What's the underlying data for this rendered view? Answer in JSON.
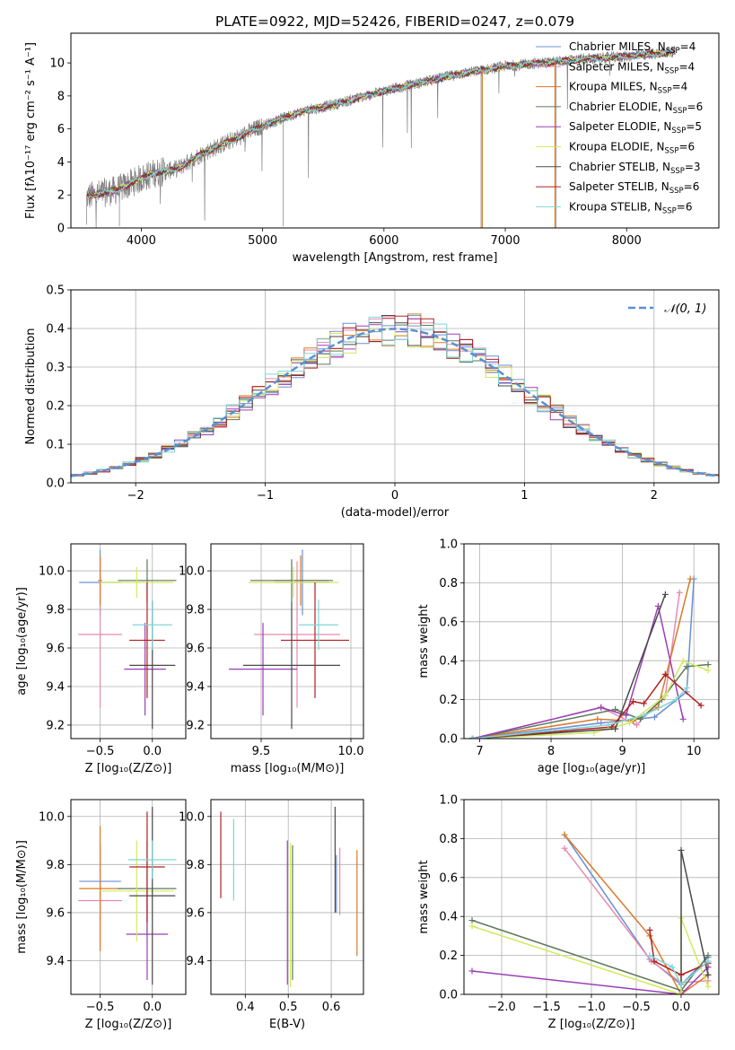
{
  "chart_data": [
    {
      "id": "spectrum",
      "type": "line",
      "title": "PLATE=0922, MJD=52426, FIBERID=0247, z=0.079",
      "xlabel": "wavelength [Angstrom, rest frame]",
      "ylabel": "Flux [fλ10⁻¹⁷ erg cm⁻² s⁻¹ A⁻¹]",
      "xlim": [
        3420,
        8760
      ],
      "ylim": [
        0,
        11.8
      ],
      "xticks": [
        4000,
        5000,
        6000,
        7000,
        8000
      ],
      "yticks": [
        0,
        2,
        4,
        6,
        8,
        10
      ],
      "legend_position": "upper-right",
      "legend": [
        {
          "label": "Chabrier MILES, N",
          "sub": "SSP",
          "tail": "=4",
          "color": "#6a8fd4"
        },
        {
          "label": "Salpeter MILES, N",
          "sub": "SSP",
          "tail": "=4",
          "color": "#e78ab2"
        },
        {
          "label": "Kroupa MILES, N",
          "sub": "SSP",
          "tail": "=4",
          "color": "#d97a2a"
        },
        {
          "label": "Chabrier ELODIE, N",
          "sub": "SSP",
          "tail": "=6",
          "color": "#5b7a5b"
        },
        {
          "label": "Salpeter ELODIE, N",
          "sub": "SSP",
          "tail": "=5",
          "color": "#9b3fb5"
        },
        {
          "label": "Kroupa ELODIE, N",
          "sub": "SSP",
          "tail": "=6",
          "color": "#d5e85c"
        },
        {
          "label": "Chabrier STELIB, N",
          "sub": "SSP",
          "tail": "=3",
          "color": "#4a4a4a"
        },
        {
          "label": "Salpeter STELIB, N",
          "sub": "SSP",
          "tail": "=6",
          "color": "#b22222"
        },
        {
          "label": "Kroupa STELIB, N",
          "sub": "SSP",
          "tail": "=6",
          "color": "#7fd6d6"
        }
      ],
      "continuum": {
        "wavelength": [
          3550,
          3800,
          4000,
          4100,
          4300,
          4500,
          4800,
          5000,
          5300,
          5600,
          6000,
          6300,
          6600,
          7000,
          7300,
          7600,
          8000,
          8300,
          8400
        ],
        "flux": [
          1.9,
          2.3,
          3.0,
          3.3,
          3.6,
          4.5,
          5.5,
          6.2,
          7.0,
          7.5,
          8.3,
          8.8,
          9.3,
          9.8,
          10.0,
          10.2,
          10.4,
          10.6,
          10.7
        ]
      }
    },
    {
      "id": "residuals",
      "type": "histogram",
      "xlabel": "(data-model)/error",
      "ylabel": "Normed distribution",
      "xlim": [
        -2.5,
        2.5
      ],
      "ylim": [
        0,
        0.5
      ],
      "xticks": [
        -2,
        -1,
        0,
        1,
        2
      ],
      "yticks": [
        0,
        0.1,
        0.2,
        0.3,
        0.4,
        0.5
      ],
      "legend_label": "𝒩(0, 1)",
      "legend_color": "#5b8fd4",
      "bins": 50
    },
    {
      "id": "age-vs-Z",
      "type": "errorbar",
      "xlabel": "Z [log₁₀(Z/Z⊙)]",
      "ylabel": "age  [log₁₀(age/yr)]",
      "xlim": [
        -0.78,
        0.32
      ],
      "ylim": [
        9.13,
        10.14
      ],
      "xticks": [
        -0.5,
        0.0
      ],
      "yticks": [
        9.2,
        9.4,
        9.6,
        9.8,
        10.0
      ],
      "points": [
        {
          "color": "#6a8fd4",
          "x": -0.5,
          "y": 9.94,
          "xerr": 0.2,
          "yerr": 0.17
        },
        {
          "color": "#e78ab2",
          "x": -0.5,
          "y": 9.67,
          "xerr": 0.21,
          "yerr": 0.38
        },
        {
          "color": "#d97a2a",
          "x": -0.5,
          "y": 9.95,
          "xerr": 0.02,
          "yerr": 0.13
        },
        {
          "color": "#5b7a5b",
          "x": -0.05,
          "y": 9.95,
          "xerr": 0.28,
          "yerr": 0.11
        },
        {
          "color": "#9b3fb5",
          "x": -0.07,
          "y": 9.49,
          "xerr": 0.2,
          "yerr": 0.24
        },
        {
          "color": "#d5e85c",
          "x": -0.15,
          "y": 9.94,
          "xerr": 0.35,
          "yerr": 0.08
        },
        {
          "color": "#4a4a4a",
          "x": 0.0,
          "y": 9.51,
          "xerr": 0.22,
          "yerr": 0.33
        },
        {
          "color": "#b22222",
          "x": -0.05,
          "y": 9.64,
          "xerr": 0.17,
          "yerr": 0.3
        },
        {
          "color": "#7fd6d6",
          "x": 0.0,
          "y": 9.72,
          "xerr": 0.19,
          "yerr": 0.13
        }
      ]
    },
    {
      "id": "age-vs-mass",
      "type": "errorbar",
      "xlabel": "mass [log₁₀(M/M⊙)]",
      "xlim": [
        9.22,
        10.07
      ],
      "ylim": [
        9.13,
        10.14
      ],
      "xticks": [
        9.5,
        10.0
      ],
      "yticks": [
        9.2,
        9.4,
        9.6,
        9.8,
        10.0
      ],
      "points": [
        {
          "color": "#6a8fd4",
          "x": 9.73,
          "y": 9.94,
          "xerr": 0.15,
          "yerr": 0.17
        },
        {
          "color": "#e78ab2",
          "x": 9.7,
          "y": 9.67,
          "xerr": 0.24,
          "yerr": 0.38
        },
        {
          "color": "#d97a2a",
          "x": 9.72,
          "y": 9.95,
          "xerr": 0.15,
          "yerr": 0.13
        },
        {
          "color": "#5b7a5b",
          "x": 9.67,
          "y": 9.95,
          "xerr": 0.23,
          "yerr": 0.11
        },
        {
          "color": "#9b3fb5",
          "x": 9.51,
          "y": 9.49,
          "xerr": 0.19,
          "yerr": 0.24
        },
        {
          "color": "#d5e85c",
          "x": 9.68,
          "y": 9.94,
          "xerr": 0.25,
          "yerr": 0.08
        },
        {
          "color": "#4a4a4a",
          "x": 9.67,
          "y": 9.51,
          "xerr": 0.27,
          "yerr": 0.33
        },
        {
          "color": "#b22222",
          "x": 9.8,
          "y": 9.64,
          "xerr": 0.19,
          "yerr": 0.3
        },
        {
          "color": "#7fd6d6",
          "x": 9.82,
          "y": 9.72,
          "xerr": 0.11,
          "yerr": 0.13
        }
      ]
    },
    {
      "id": "weight-vs-age",
      "type": "line",
      "xlabel": "age  [log₁₀(age/yr)]",
      "ylabel": "mass weight",
      "xlim": [
        6.78,
        10.35
      ],
      "ylim": [
        0,
        1.0
      ],
      "xticks": [
        7,
        8,
        9,
        10
      ],
      "yticks": [
        0.0,
        0.2,
        0.4,
        0.6,
        0.8,
        1.0
      ],
      "series": [
        {
          "color": "#6a8fd4",
          "x": [
            6.9,
            8.7,
            9.45,
            9.9,
            10.0
          ],
          "y": [
            0.0,
            0.08,
            0.11,
            0.24,
            0.82
          ]
        },
        {
          "color": "#e78ab2",
          "x": [
            6.9,
            8.7,
            9.2,
            9.6,
            9.8
          ],
          "y": [
            0.0,
            0.16,
            0.07,
            0.22,
            0.75
          ]
        },
        {
          "color": "#d97a2a",
          "x": [
            6.9,
            8.65,
            9.15,
            9.5,
            9.95
          ],
          "y": [
            0.0,
            0.1,
            0.09,
            0.16,
            0.82
          ]
        },
        {
          "color": "#5b7a5b",
          "x": [
            6.9,
            8.9,
            9.25,
            9.55,
            9.9,
            10.2
          ],
          "y": [
            0.0,
            0.15,
            0.1,
            0.2,
            0.37,
            0.38
          ]
        },
        {
          "color": "#9b3fb5",
          "x": [
            6.9,
            8.7,
            9.05,
            9.5,
            9.85
          ],
          "y": [
            0.0,
            0.16,
            0.12,
            0.68,
            0.1
          ]
        },
        {
          "color": "#d5e85c",
          "x": [
            6.9,
            8.6,
            9.1,
            9.6,
            9.85,
            10.2
          ],
          "y": [
            0.0,
            0.03,
            0.08,
            0.22,
            0.4,
            0.35
          ]
        },
        {
          "color": "#4a4a4a",
          "x": [
            6.9,
            8.9,
            9.6
          ],
          "y": [
            0.0,
            0.05,
            0.74
          ]
        },
        {
          "color": "#b22222",
          "x": [
            6.9,
            8.85,
            9.15,
            9.3,
            9.6,
            10.1
          ],
          "y": [
            0.0,
            0.06,
            0.19,
            0.18,
            0.33,
            0.17
          ]
        },
        {
          "color": "#7fd6d6",
          "x": [
            6.9,
            8.8,
            9.3,
            9.75,
            9.9
          ],
          "y": [
            0.0,
            0.07,
            0.12,
            0.2,
            0.26
          ]
        }
      ]
    },
    {
      "id": "mass-vs-Z",
      "type": "errorbar",
      "xlabel": "Z [log₁₀(Z/Z⊙)]",
      "ylabel": "mass [log₁₀(M/M⊙)]",
      "xlim": [
        -0.78,
        0.32
      ],
      "ylim": [
        9.26,
        10.07
      ],
      "xticks": [
        -0.5,
        0.0
      ],
      "yticks": [
        9.4,
        9.6,
        9.8,
        10.0
      ],
      "points": [
        {
          "color": "#6a8fd4",
          "x": -0.5,
          "y": 9.73,
          "xerr": 0.2,
          "yerr": 0.16
        },
        {
          "color": "#e78ab2",
          "x": -0.5,
          "y": 9.65,
          "xerr": 0.21,
          "yerr": 0.21
        },
        {
          "color": "#d97a2a",
          "x": -0.5,
          "y": 9.7,
          "xerr": 0.2,
          "yerr": 0.26
        },
        {
          "color": "#5b7a5b",
          "x": -0.05,
          "y": 9.7,
          "xerr": 0.28,
          "yerr": 0.2
        },
        {
          "color": "#9b3fb5",
          "x": -0.05,
          "y": 9.51,
          "xerr": 0.2,
          "yerr": 0.19
        },
        {
          "color": "#d5e85c",
          "x": -0.15,
          "y": 9.69,
          "xerr": 0.35,
          "yerr": 0.21
        },
        {
          "color": "#4a4a4a",
          "x": 0.0,
          "y": 9.67,
          "xerr": 0.22,
          "yerr": 0.37
        },
        {
          "color": "#b22222",
          "x": -0.05,
          "y": 9.79,
          "xerr": 0.17,
          "yerr": 0.23
        },
        {
          "color": "#7fd6d6",
          "x": 0.0,
          "y": 9.82,
          "xerr": 0.23,
          "yerr": 0.08
        }
      ]
    },
    {
      "id": "mass-vs-ebv",
      "type": "errorbar",
      "xlabel": "E(B-V)",
      "xlim": [
        0.32,
        0.675
      ],
      "ylim": [
        9.26,
        10.07
      ],
      "xticks": [
        0.4,
        0.5,
        0.6
      ],
      "yticks": [
        9.4,
        9.6,
        9.8,
        10.0
      ],
      "points": [
        {
          "color": "#b22222",
          "x": 0.343,
          "y": 9.84,
          "yerr": 0.18
        },
        {
          "color": "#7fd6d6",
          "x": 0.373,
          "y": 9.82,
          "yerr": 0.17
        },
        {
          "color": "#9b3fb5",
          "x": 0.498,
          "y": 9.6,
          "yerr": 0.3
        },
        {
          "color": "#d5e85c",
          "x": 0.505,
          "y": 9.59,
          "yerr": 0.3
        },
        {
          "color": "#5b7a5b",
          "x": 0.51,
          "y": 9.6,
          "yerr": 0.28
        },
        {
          "color": "#4a4a4a",
          "x": 0.609,
          "y": 9.82,
          "yerr": 0.22
        },
        {
          "color": "#6a8fd4",
          "x": 0.612,
          "y": 9.72,
          "yerr": 0.12
        },
        {
          "color": "#e78ab2",
          "x": 0.62,
          "y": 9.73,
          "yerr": 0.14
        },
        {
          "color": "#d97a2a",
          "x": 0.66,
          "y": 9.64,
          "yerr": 0.22
        }
      ]
    },
    {
      "id": "weight-vs-Z",
      "type": "line",
      "xlabel": "Z [log₁₀(Z/Z⊙)]",
      "ylabel": "mass weight",
      "xlim": [
        -2.42,
        0.42
      ],
      "ylim": [
        0,
        1.0
      ],
      "xticks": [
        -2.0,
        -1.5,
        -1.0,
        -0.5,
        0.0
      ],
      "yticks": [
        0.0,
        0.2,
        0.4,
        0.6,
        0.8,
        1.0
      ],
      "series": [
        {
          "color": "#6a8fd4",
          "x": [
            -1.3,
            -0.35,
            0.0,
            0.3
          ],
          "y": [
            0.82,
            0.18,
            0.05,
            0.19
          ]
        },
        {
          "color": "#e78ab2",
          "x": [
            -1.3,
            -0.33,
            0.0,
            0.3
          ],
          "y": [
            0.75,
            0.17,
            0.06,
            0.07
          ]
        },
        {
          "color": "#d97a2a",
          "x": [
            -1.3,
            -0.35,
            0.0,
            0.3
          ],
          "y": [
            0.82,
            0.3,
            0.0,
            0.1
          ]
        },
        {
          "color": "#5b7a5b",
          "x": [
            -2.33,
            0.0,
            0.3
          ],
          "y": [
            0.38,
            0.02,
            0.2
          ]
        },
        {
          "color": "#9b3fb5",
          "x": [
            -2.33,
            0.0,
            0.3
          ],
          "y": [
            0.12,
            0.0,
            0.14
          ]
        },
        {
          "color": "#d5e85c",
          "x": [
            -2.33,
            0.0,
            0.0,
            0.3
          ],
          "y": [
            0.35,
            0.0,
            0.39,
            0.04
          ]
        },
        {
          "color": "#4a4a4a",
          "x": [
            0.0,
            0.0,
            0.3
          ],
          "y": [
            0.05,
            0.74,
            0.1
          ]
        },
        {
          "color": "#b22222",
          "x": [
            -0.35,
            -0.3,
            0.0,
            0.3
          ],
          "y": [
            0.33,
            0.17,
            0.1,
            0.16
          ]
        },
        {
          "color": "#7fd6d6",
          "x": [
            -0.35,
            -0.1,
            0.0,
            0.3
          ],
          "y": [
            0.2,
            0.14,
            0.05,
            0.17
          ]
        }
      ]
    }
  ]
}
